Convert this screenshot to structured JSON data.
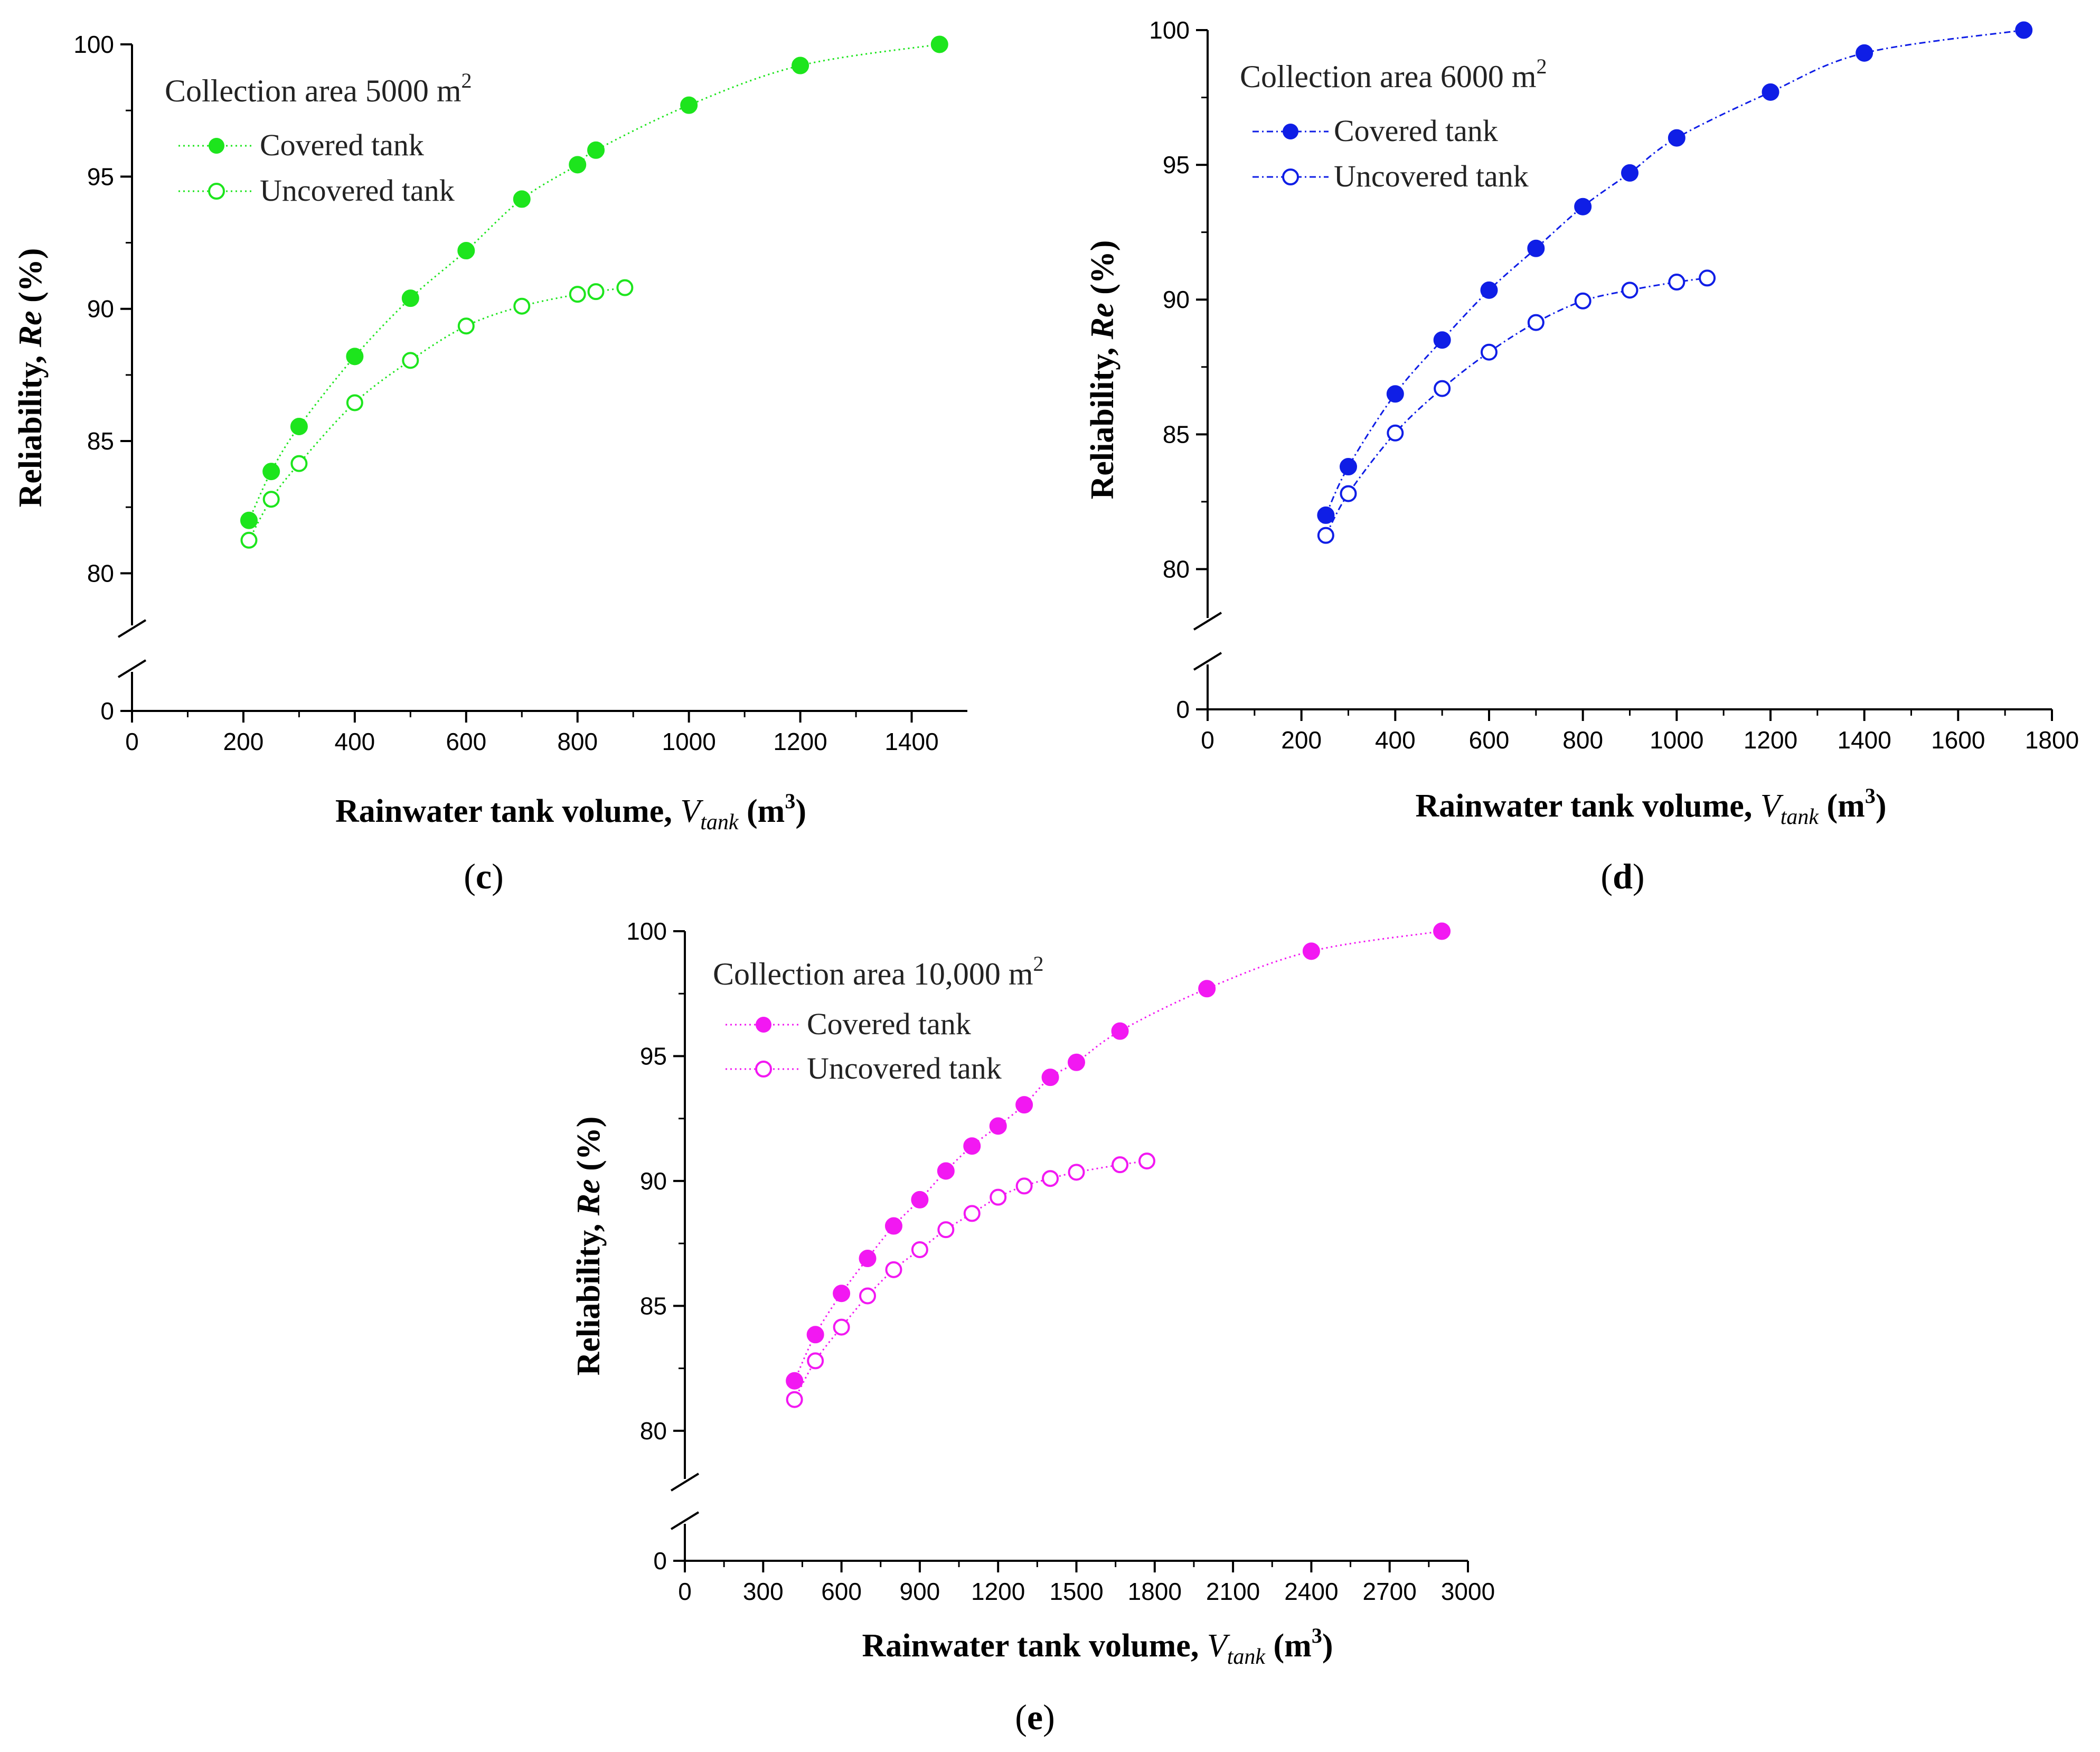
{
  "figure": {
    "panels": [
      {
        "panel_label": "c",
        "title_prefix": "Collection area 5000 m",
        "title_sup": "2",
        "xlabel_prefix": "Rainwater tank volume, ",
        "xlabel_var": "V",
        "xlabel_sub": "tank",
        "xlabel_unit_open": " (m",
        "xlabel_unit_sup": "3",
        "xlabel_unit_close": ")",
        "ylabel_prefix": "Reliability, ",
        "ylabel_var": "Re",
        "ylabel_suffix": " (%)",
        "color": "#1de51d",
        "line_style": "dotted"
      },
      {
        "panel_label": "d",
        "title_prefix": "Collection area 6000 m",
        "title_sup": "2",
        "xlabel_prefix": "Rainwater tank volume, ",
        "xlabel_var": "V",
        "xlabel_sub": "tank",
        "xlabel_unit_open": " (m",
        "xlabel_unit_sup": "3",
        "xlabel_unit_close": ")",
        "ylabel_prefix": "Reliability, ",
        "ylabel_var": "Re",
        "ylabel_suffix": " (%)",
        "color": "#0f1ee6",
        "line_style": "dashdot"
      },
      {
        "panel_label": "e",
        "title_prefix": "Collection area 10,000 m",
        "title_sup": "2",
        "xlabel_prefix": "Rainwater tank volume, ",
        "xlabel_var": "V",
        "xlabel_sub": "tank",
        "xlabel_unit_open": " (m",
        "xlabel_unit_sup": "3",
        "xlabel_unit_close": ")",
        "ylabel_prefix": "Reliability, ",
        "ylabel_var": "Re",
        "ylabel_suffix": " (%)",
        "color": "#f218f2",
        "line_style": "dotted"
      }
    ]
  },
  "chart_data": [
    {
      "type": "scatter",
      "panel": "c",
      "title": "Collection area 5000 m2",
      "xlabel": "Rainwater tank volume, Vtank (m3)",
      "ylabel": "Reliability, Re (%)",
      "xlim": [
        0,
        1500
      ],
      "xticks": [
        0,
        200,
        400,
        600,
        800,
        1000,
        1200,
        1400
      ],
      "xtick_labels": [
        "0",
        "200",
        "400",
        "600",
        "800",
        "1000",
        "1200",
        "1400"
      ],
      "yticks": [
        0,
        80,
        85,
        90,
        95,
        100
      ],
      "ytick_labels": [
        "0",
        "80",
        "85",
        "90",
        "95",
        "100"
      ],
      "y_axis_break": [
        0,
        77
      ],
      "legend_location": "upper-left",
      "series": [
        {
          "name": "Covered tank",
          "marker": "filled-circle",
          "x": [
            210,
            250,
            300,
            400,
            500,
            600,
            700,
            800,
            833,
            1000,
            1200,
            1450
          ],
          "y": [
            82.0,
            83.85,
            85.55,
            88.2,
            90.4,
            92.2,
            94.15,
            95.45,
            96.0,
            97.7,
            99.2,
            100.0
          ]
        },
        {
          "name": "Uncovered tank",
          "marker": "open-circle",
          "x": [
            210,
            250,
            300,
            400,
            500,
            600,
            700,
            800,
            833,
            885
          ],
          "y": [
            81.25,
            82.8,
            84.15,
            86.45,
            88.05,
            89.35,
            90.1,
            90.55,
            90.65,
            90.8
          ]
        }
      ]
    },
    {
      "type": "scatter",
      "panel": "d",
      "title": "Collection area 6000 m2",
      "xlabel": "Rainwater tank volume, Vtank (m3)",
      "ylabel": "Reliability, Re (%)",
      "xlim": [
        0,
        1800
      ],
      "xticks": [
        0,
        200,
        400,
        600,
        800,
        1000,
        1200,
        1400,
        1600,
        1800
      ],
      "xtick_labels": [
        "0",
        "200",
        "400",
        "600",
        "800",
        "1000",
        "1200",
        "1400",
        "1600",
        "1800"
      ],
      "yticks": [
        0,
        80,
        85,
        90,
        95,
        100
      ],
      "ytick_labels": [
        "0",
        "80",
        "85",
        "90",
        "95",
        "100"
      ],
      "y_axis_break": [
        0,
        77
      ],
      "legend_location": "upper-left",
      "series": [
        {
          "name": "Covered tank",
          "marker": "filled-circle",
          "x": [
            252,
            300,
            400,
            500,
            600,
            700,
            800,
            900,
            1000,
            1200,
            1400,
            1740
          ],
          "y": [
            82.0,
            83.8,
            86.5,
            88.5,
            90.35,
            91.9,
            93.45,
            94.7,
            96.0,
            97.7,
            99.15,
            100.0
          ]
        },
        {
          "name": "Uncovered tank",
          "marker": "open-circle",
          "x": [
            252,
            300,
            400,
            500,
            600,
            700,
            800,
            900,
            1000,
            1065
          ],
          "y": [
            81.25,
            82.8,
            85.05,
            86.7,
            88.05,
            89.15,
            89.95,
            90.35,
            90.65,
            90.8
          ]
        }
      ]
    },
    {
      "type": "scatter",
      "panel": "e",
      "title": "Collection area 10,000 m2",
      "xlabel": "Rainwater tank volume, Vtank (m3)",
      "ylabel": "Reliability, Re (%)",
      "xlim": [
        0,
        3000
      ],
      "xticks": [
        0,
        300,
        600,
        900,
        1200,
        1500,
        1800,
        2100,
        2400,
        2700,
        3000
      ],
      "xtick_labels": [
        "0",
        "300",
        "600",
        "900",
        "1200",
        "1500",
        "1800",
        "2100",
        "2400",
        "2700",
        "3000"
      ],
      "yticks": [
        0,
        80,
        85,
        90,
        95,
        100
      ],
      "ytick_labels": [
        "0",
        "80",
        "85",
        "90",
        "95",
        "100"
      ],
      "y_axis_break": [
        0,
        77
      ],
      "legend_location": "upper-left",
      "series": [
        {
          "name": "Covered tank",
          "marker": "filled-circle",
          "x": [
            420,
            500,
            600,
            700,
            800,
            900,
            1000,
            1100,
            1200,
            1300,
            1400,
            1500,
            1667,
            2000,
            2400,
            2900
          ],
          "y": [
            82.0,
            83.85,
            85.5,
            86.9,
            88.2,
            89.25,
            90.4,
            91.4,
            92.2,
            93.05,
            94.15,
            94.75,
            96.0,
            97.7,
            99.2,
            100.0
          ]
        },
        {
          "name": "Uncovered tank",
          "marker": "open-circle",
          "x": [
            420,
            500,
            600,
            700,
            800,
            900,
            1000,
            1100,
            1200,
            1300,
            1400,
            1500,
            1667,
            1770
          ],
          "y": [
            81.25,
            82.8,
            84.15,
            85.4,
            86.45,
            87.25,
            88.05,
            88.7,
            89.35,
            89.8,
            90.1,
            90.35,
            90.65,
            90.8
          ]
        }
      ]
    }
  ]
}
